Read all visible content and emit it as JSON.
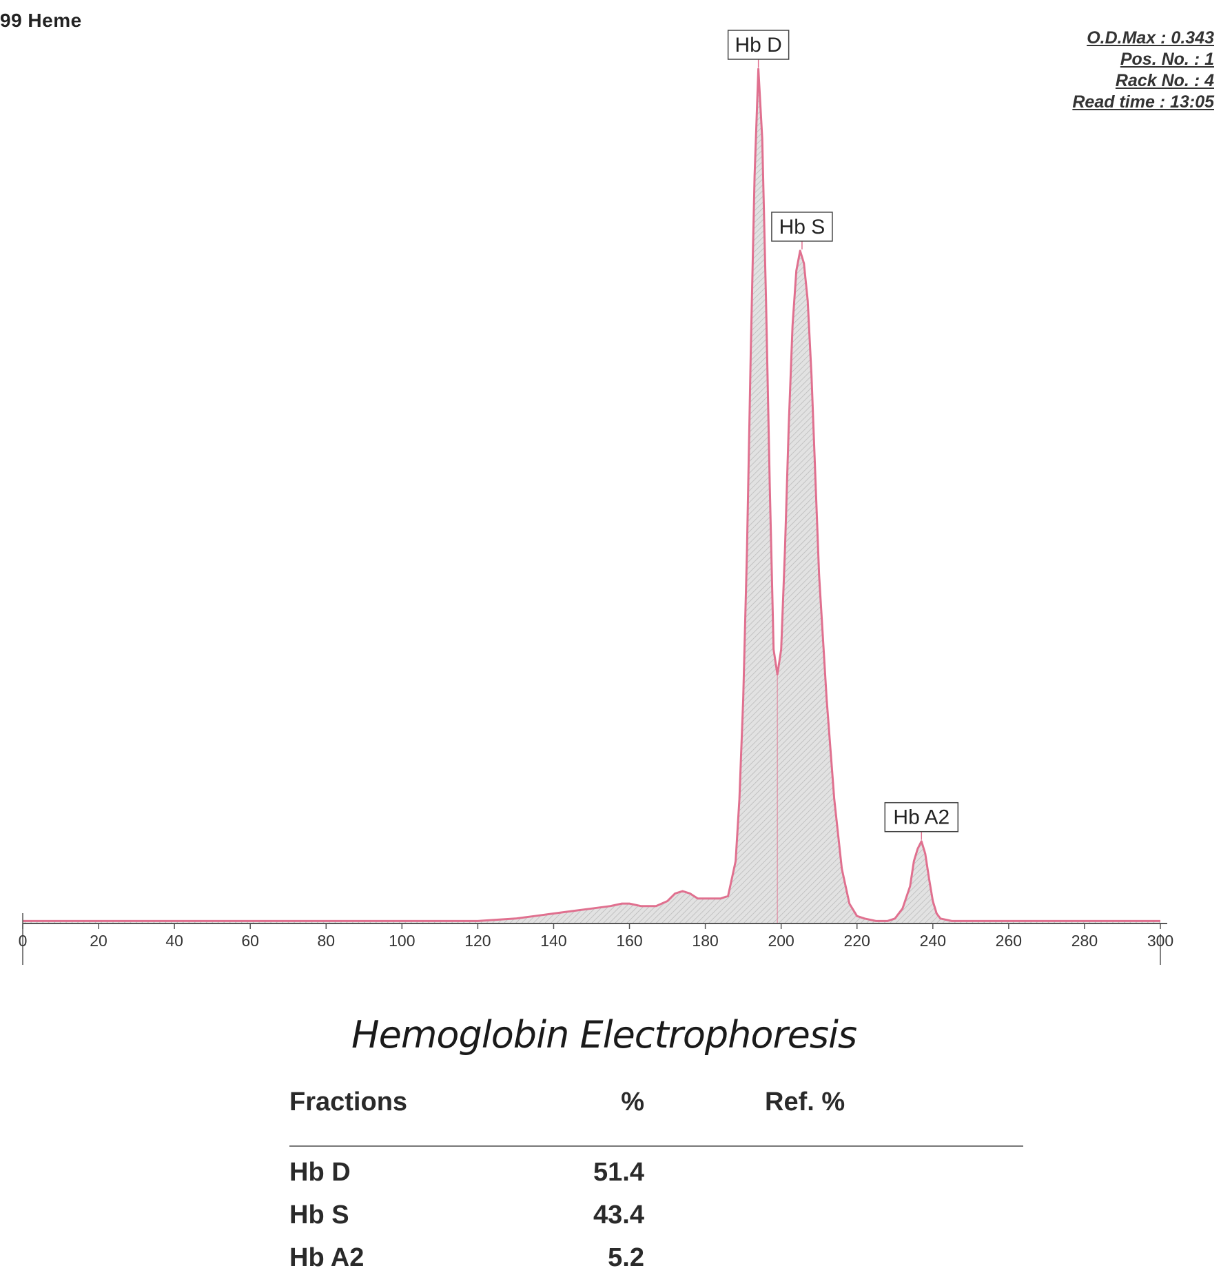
{
  "header": {
    "left_text": "99 Heme"
  },
  "meta": {
    "od_max": "O.D.Max : 0.343",
    "pos_no": "Pos. No. : 1",
    "rack_no": "Rack No. : 4",
    "read_time": "Read time : 13:05"
  },
  "chart_data": {
    "type": "line",
    "title": "",
    "xlabel": "",
    "ylabel": "",
    "xlim": [
      0,
      300
    ],
    "ylim": [
      0,
      0.343
    ],
    "x_ticks": [
      0,
      20,
      40,
      60,
      80,
      100,
      120,
      140,
      160,
      180,
      200,
      220,
      240,
      260,
      280,
      300
    ],
    "grid": false,
    "legend": "none",
    "colors": {
      "curve": "#e0708f",
      "fill": "#d8d8d8",
      "axis": "#555555",
      "label_border": "#444444"
    },
    "curve": {
      "x": [
        0,
        20,
        40,
        60,
        80,
        100,
        120,
        130,
        135,
        140,
        145,
        150,
        155,
        158,
        160,
        163,
        167,
        170,
        172,
        174,
        176,
        178,
        180,
        182,
        184,
        186,
        188,
        189,
        190,
        191,
        192,
        193,
        194,
        195,
        196,
        197,
        198,
        199,
        200,
        201,
        202,
        203,
        204,
        205,
        206,
        207,
        208,
        209,
        210,
        212,
        214,
        216,
        218,
        220,
        222,
        225,
        228,
        230,
        232,
        234,
        235,
        236,
        237,
        238,
        239,
        240,
        241,
        242,
        245,
        250,
        260,
        280,
        300
      ],
      "y": [
        0.001,
        0.001,
        0.001,
        0.001,
        0.001,
        0.001,
        0.001,
        0.002,
        0.003,
        0.004,
        0.005,
        0.006,
        0.007,
        0.008,
        0.008,
        0.007,
        0.007,
        0.009,
        0.012,
        0.013,
        0.012,
        0.01,
        0.01,
        0.01,
        0.01,
        0.011,
        0.025,
        0.05,
        0.09,
        0.15,
        0.23,
        0.3,
        0.343,
        0.315,
        0.25,
        0.175,
        0.11,
        0.1,
        0.11,
        0.15,
        0.2,
        0.24,
        0.262,
        0.27,
        0.265,
        0.25,
        0.22,
        0.18,
        0.14,
        0.09,
        0.05,
        0.022,
        0.008,
        0.003,
        0.002,
        0.001,
        0.001,
        0.002,
        0.006,
        0.015,
        0.025,
        0.03,
        0.033,
        0.028,
        0.018,
        0.009,
        0.004,
        0.002,
        0.001,
        0.001,
        0.001,
        0.001,
        0.001
      ]
    },
    "peaks": [
      {
        "label": "Hb D",
        "x": 194,
        "y": 0.343
      },
      {
        "label": "Hb S",
        "x": 205.5,
        "y": 0.27
      },
      {
        "label": "Hb A2",
        "x": 237,
        "y": 0.033
      }
    ]
  },
  "table": {
    "title": "Hemoglobin Electrophoresis",
    "headers": {
      "fraction": "Fractions",
      "percent": "%",
      "ref": "Ref. %"
    },
    "rows": [
      {
        "fraction": "Hb D",
        "percent": "51.4",
        "ref": ""
      },
      {
        "fraction": "Hb S",
        "percent": "43.4",
        "ref": ""
      },
      {
        "fraction": "Hb A2",
        "percent": "5.2",
        "ref": ""
      }
    ]
  }
}
